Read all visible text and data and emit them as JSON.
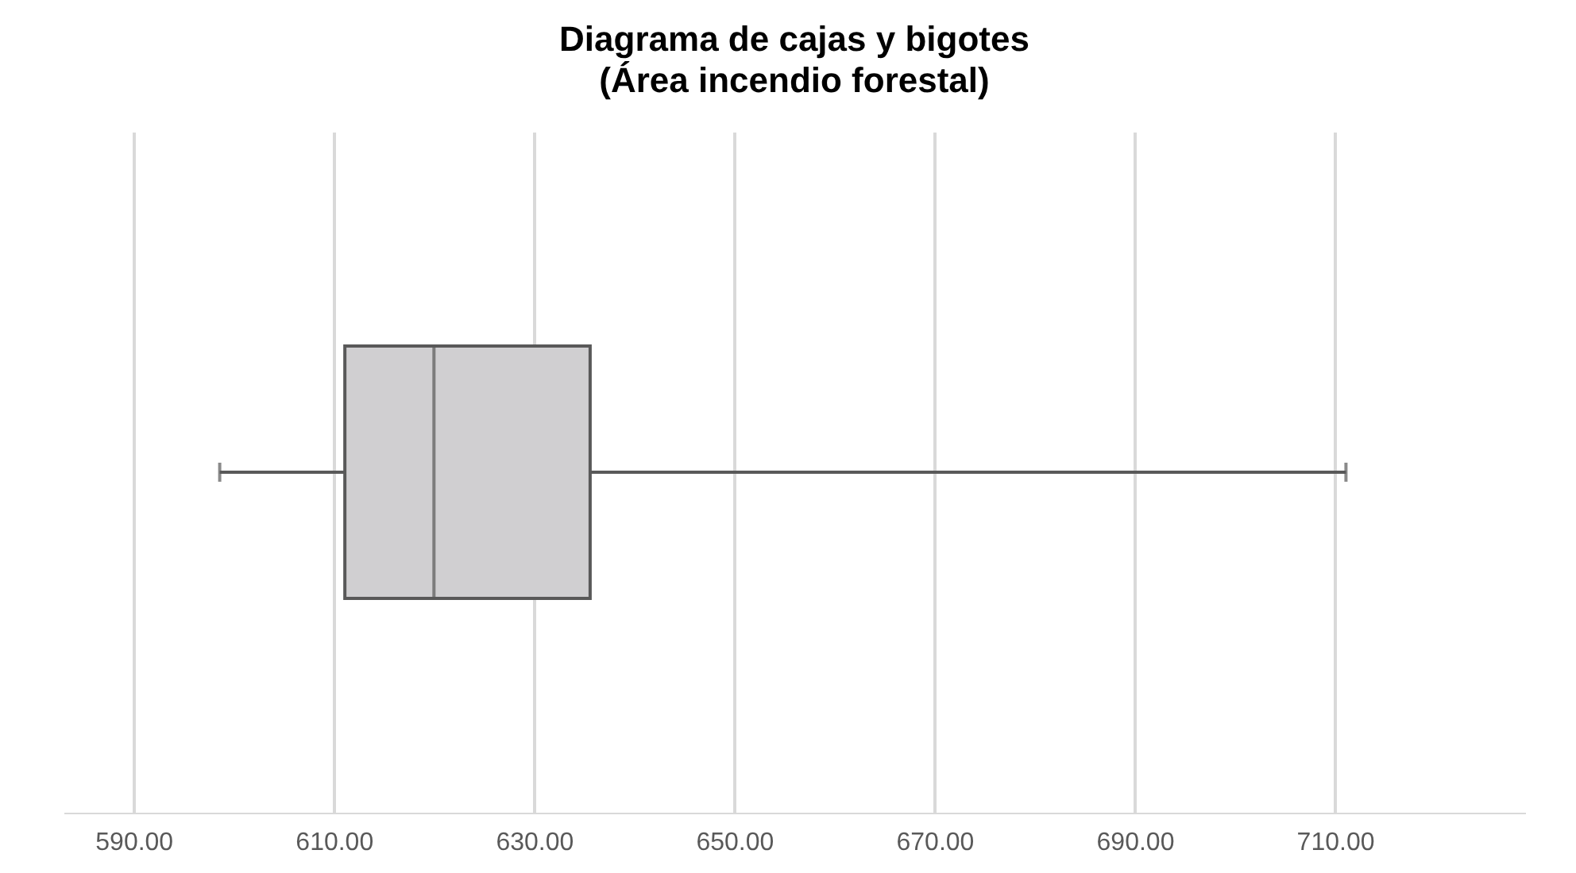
{
  "chart_data": {
    "type": "box",
    "title": "Diagrama de cajas y bigotes\n(Área incendio forestal)",
    "orientation": "horizontal",
    "categories": [
      null
    ],
    "boxes": [
      {
        "low": 598.6,
        "q1": 611.1,
        "median": 620.0,
        "q3": 635.6,
        "high": 711.1
      }
    ],
    "color": "#d0cfd1",
    "xlim": [
      583,
      729
    ],
    "xticks": [
      {
        "value": 590,
        "label": "590.00"
      },
      {
        "value": 610,
        "label": "610.00"
      },
      {
        "value": 630,
        "label": "630.00"
      },
      {
        "value": 650,
        "label": "650.00"
      },
      {
        "value": 670,
        "label": "670.00"
      },
      {
        "value": 690,
        "label": "690.00"
      },
      {
        "value": 710,
        "label": "710.00"
      }
    ],
    "grid": "x"
  }
}
